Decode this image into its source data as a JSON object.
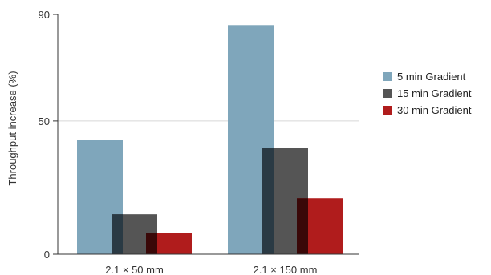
{
  "chart_data": {
    "type": "bar",
    "title": "",
    "ylabel": "Throughput increase (%)",
    "xlabel": "",
    "ylim": [
      0,
      90
    ],
    "yticks": [
      0,
      50,
      90
    ],
    "grid": "y at 50",
    "legend_position": "right",
    "categories": [
      "2.1 × 50 mm",
      "2.1 × 150 mm"
    ],
    "series": [
      {
        "name": "5 min Gradient",
        "values": [
          43,
          86
        ],
        "color": "#7fa6bb"
      },
      {
        "name": "15 min Gradient",
        "values": [
          15,
          40
        ],
        "color": "#555555"
      },
      {
        "name": "30 min Gradient",
        "values": [
          8,
          21
        ],
        "color": "#b01c1c"
      }
    ]
  }
}
